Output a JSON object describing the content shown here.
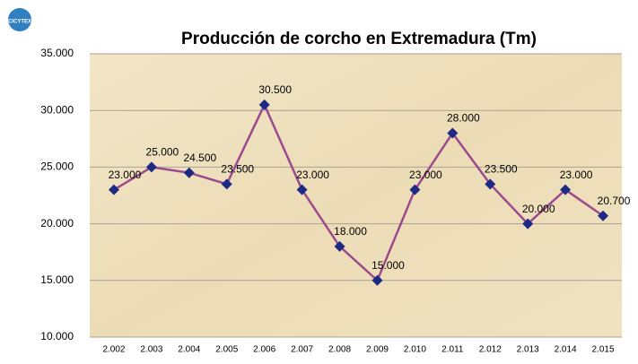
{
  "chart_data": {
    "type": "line",
    "logo_text": "CICYTEX",
    "title": "Producción de corcho en Extremadura (Tm)",
    "categories": [
      "2.002",
      "2.003",
      "2.004",
      "2.005",
      "2.006",
      "2.007",
      "2.008",
      "2.009",
      "2.010",
      "2.011",
      "2.012",
      "2.013",
      "2.014",
      "2.015"
    ],
    "series": [
      {
        "name": "Producción",
        "color": "#9c4a8e",
        "marker_color": "#1c2a86",
        "values": [
          23000,
          25000,
          24500,
          23500,
          30500,
          23000,
          18000,
          15000,
          23000,
          28000,
          23500,
          20000,
          23000,
          20700
        ],
        "value_labels": [
          "23.000",
          "25.000",
          "24.500",
          "23.500",
          "30.500",
          "23.000",
          "18.000",
          "15.000",
          "23.000",
          "28.000",
          "23.500",
          "20.000",
          "23.000",
          "20.700"
        ]
      }
    ],
    "ylim": [
      10000,
      35000
    ],
    "yticks": [
      {
        "value": 10000,
        "label": "10.000"
      },
      {
        "value": 15000,
        "label": "15.000"
      },
      {
        "value": 20000,
        "label": "20.000"
      },
      {
        "value": 25000,
        "label": "25.000"
      },
      {
        "value": 30000,
        "label": "30.000"
      },
      {
        "value": 35000,
        "label": "35.000"
      }
    ],
    "grid": true
  }
}
